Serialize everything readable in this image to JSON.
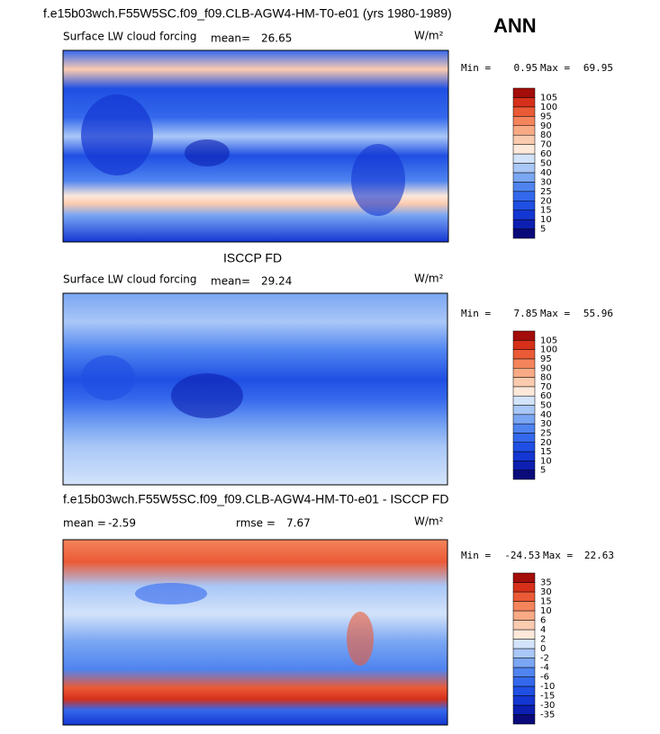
{
  "header": {
    "run_title": "f.e15b03wch.F55W5SC.f09_f09.CLB-AGW4-HM-T0-e01 (yrs 1980-1989)",
    "season": "ANN"
  },
  "panels": [
    {
      "variable": "Surface LW cloud forcing",
      "mean_label": "mean=",
      "mean": 26.65,
      "units": "W/m²",
      "min_label": "Min =",
      "min": 0.95,
      "max_label": "Max =",
      "max": 69.95,
      "colorbar": {
        "levels": [
          5,
          10,
          15,
          20,
          25,
          30,
          40,
          50,
          60,
          70,
          80,
          90,
          95,
          100,
          105
        ],
        "colors": [
          "#0a0a7a",
          "#0c1fb0",
          "#1436d2",
          "#1f4fe3",
          "#3468ec",
          "#4f84f0",
          "#7aa6f3",
          "#a9c7f7",
          "#d3e3fa",
          "#fde8da",
          "#fbcbb0",
          "#f8aa85",
          "#f4845c",
          "#eb5a36",
          "#d6301a",
          "#a30d0a"
        ]
      }
    },
    {
      "title": "ISCCP FD",
      "variable": "Surface LW cloud forcing",
      "mean_label": "mean=",
      "mean": 29.24,
      "units": "W/m²",
      "min_label": "Min =",
      "min": 7.85,
      "max_label": "Max =",
      "max": 55.96,
      "colorbar": {
        "levels": [
          5,
          10,
          15,
          20,
          25,
          30,
          40,
          50,
          60,
          70,
          80,
          90,
          95,
          100,
          105
        ],
        "colors": [
          "#0a0a7a",
          "#0c1fb0",
          "#1436d2",
          "#1f4fe3",
          "#3468ec",
          "#4f84f0",
          "#7aa6f3",
          "#a9c7f7",
          "#d3e3fa",
          "#fde8da",
          "#fbcbb0",
          "#f8aa85",
          "#f4845c",
          "#eb5a36",
          "#d6301a",
          "#a30d0a"
        ]
      }
    },
    {
      "title": "f.e15b03wch.F55W5SC.f09_f09.CLB-AGW4-HM-T0-e01 - ISCCP FD",
      "mean_label": "mean =",
      "mean": -2.59,
      "rmse_label": "rmse =",
      "rmse": 7.67,
      "units": "W/m²",
      "min_label": "Min =",
      "min": -24.53,
      "max_label": "Max =",
      "max": 22.63,
      "colorbar": {
        "levels": [
          -35,
          -30,
          -15,
          -10,
          -6,
          -4,
          -2,
          0,
          2,
          4,
          6,
          10,
          15,
          30,
          35
        ],
        "colors": [
          "#0a0a7a",
          "#0c1fb0",
          "#1436d2",
          "#1f4fe3",
          "#3468ec",
          "#4f84f0",
          "#7aa6f3",
          "#a9c7f7",
          "#d3e3fa",
          "#fde8da",
          "#fbcbb0",
          "#f8aa85",
          "#f4845c",
          "#eb5a36",
          "#d6301a",
          "#a30d0a"
        ]
      }
    }
  ]
}
